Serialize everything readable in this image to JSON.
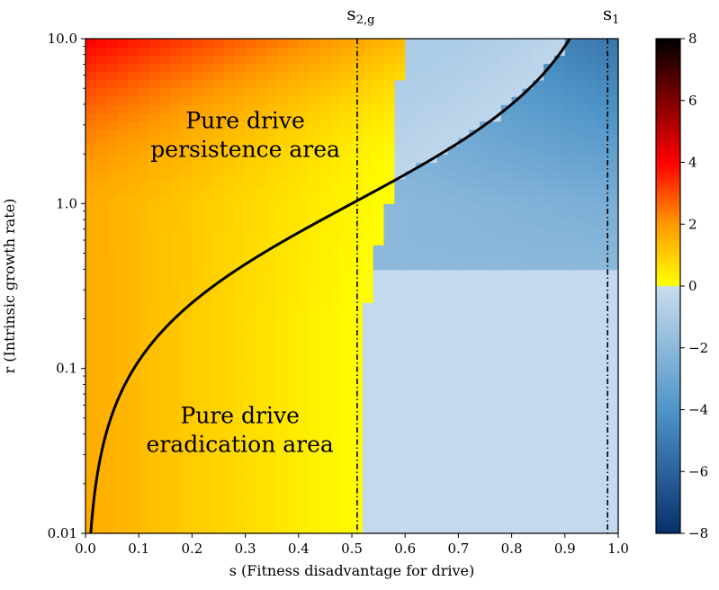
{
  "chart_data": {
    "type": "heatmap",
    "title": "",
    "xlabel": "s (Fitness disadvantage for drive)",
    "ylabel": "r (Intrinsic growth rate)",
    "xlim": [
      0.0,
      1.0
    ],
    "ylim": [
      0.01,
      10.0
    ],
    "yscale": "log",
    "x_ticks": [
      0.0,
      0.1,
      0.2,
      0.3,
      0.4,
      0.5,
      0.6,
      0.7,
      0.8,
      0.9,
      1.0
    ],
    "x_tick_labels": [
      "0.0",
      "0.1",
      "0.2",
      "0.3",
      "0.4",
      "0.5",
      "0.6",
      "0.7",
      "0.8",
      "0.9",
      "1.0"
    ],
    "y_ticks": [
      0.01,
      0.1,
      1.0,
      10.0
    ],
    "y_tick_labels": [
      "0.01",
      "0.1",
      "1.0",
      "10.0"
    ],
    "colorbar": {
      "range": [
        -8,
        8
      ],
      "ticks": [
        8,
        6,
        4,
        2,
        0,
        -2,
        -4,
        -6,
        -8
      ],
      "tick_labels": [
        "8",
        "6",
        "4",
        "2",
        "0",
        "−2",
        "−4",
        "−6",
        "−8"
      ],
      "colors_positive": [
        "#ffff00",
        "#ff9900",
        "#ff0000",
        "#000000"
      ],
      "colors_negative": [
        "#c8dcee",
        "#4f95c8",
        "#08306b"
      ]
    },
    "threshold_curve": {
      "description": "r = s/(1-s)",
      "points": [
        [
          0.0099,
          0.01
        ],
        [
          0.02,
          0.0204
        ],
        [
          0.05,
          0.0526
        ],
        [
          0.1,
          0.111
        ],
        [
          0.2,
          0.25
        ],
        [
          0.3,
          0.429
        ],
        [
          0.4,
          0.667
        ],
        [
          0.5,
          1.0
        ],
        [
          0.6,
          1.5
        ],
        [
          0.7,
          2.333
        ],
        [
          0.8,
          4.0
        ],
        [
          0.85,
          5.667
        ],
        [
          0.9,
          9.0
        ],
        [
          0.909,
          10.0
        ]
      ],
      "color": "#000000"
    },
    "boundary": {
      "description": "s value where the heatmap switches from positive to negative values, per r",
      "points": [
        [
          0.01,
          0.52
        ],
        [
          0.1,
          0.52
        ],
        [
          0.2,
          0.52
        ],
        [
          0.3,
          0.535
        ],
        [
          0.5,
          0.545
        ],
        [
          0.8,
          0.565
        ],
        [
          1.2,
          0.575
        ],
        [
          2.5,
          0.575
        ],
        [
          10.0,
          0.6
        ]
      ]
    },
    "vertical_lines": [
      {
        "name": "s2g",
        "label_base": "s",
        "label_sub": "2,g",
        "x": 0.51
      },
      {
        "name": "s1",
        "label_base": "s",
        "label_sub": "1",
        "x": 0.98
      }
    ],
    "annotations": [
      {
        "name": "persistence",
        "lines": [
          "Pure drive",
          "persistence area"
        ],
        "x": 0.3,
        "y": 2.6
      },
      {
        "name": "eradication",
        "lines": [
          "Pure drive",
          "eradication area"
        ],
        "x": 0.29,
        "y": 0.042
      }
    ]
  }
}
